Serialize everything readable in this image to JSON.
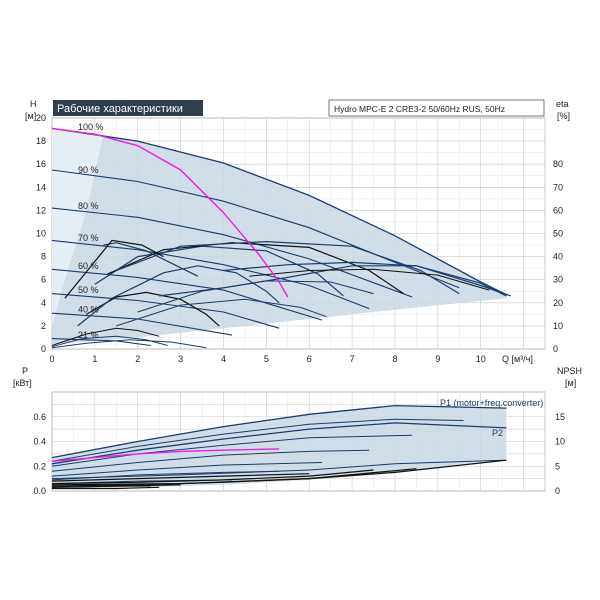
{
  "colors": {
    "band_fill": "#c9d7e3",
    "band_stroke": "#1f4e7a",
    "curve_navy": "#1a3d6b",
    "curve_black": "#111111",
    "highlight": "#e81fe8",
    "grid": "#c8c8c8",
    "title_bg": "#2f3e4d",
    "title_fg": "#ffffff"
  },
  "chart_data": [
    {
      "type": "line",
      "title": "Рабочие характеристики",
      "subtitle": "Hydro MPC-E 2 CRE3-2 50/60Hz RUS, 50Hz",
      "ylabel": "H",
      "yunit": "[м]",
      "ylabel_right": "eta",
      "yunit_right": "[%]",
      "xlabel": "Q [м³/ч]",
      "xlim": [
        0,
        11.5
      ],
      "ylim": [
        0,
        20
      ],
      "xticks": [
        "0",
        "1",
        "2",
        "3",
        "4",
        "5",
        "6",
        "7",
        "8",
        "9",
        "10"
      ],
      "yticks": [
        "0",
        "2",
        "4",
        "6",
        "8",
        "10",
        "12",
        "14",
        "16",
        "18",
        "20"
      ],
      "yticks_right": [
        "0",
        "10",
        "20",
        "30",
        "40",
        "50",
        "60",
        "70",
        "80"
      ],
      "y_right_lim": [
        0,
        100
      ],
      "grid": true,
      "speed_labels": [
        "100 %",
        "90 %",
        "80 %",
        "70 %",
        "60 %",
        "50 %",
        "40 %",
        "21 %"
      ],
      "series": [
        {
          "name": "100 %",
          "values": [
            [
              0,
              19.1
            ],
            [
              2,
              18.0
            ],
            [
              4,
              16.1
            ],
            [
              6,
              13.3
            ],
            [
              8,
              9.8
            ],
            [
              10,
              5.8
            ],
            [
              10.6,
              4.7
            ]
          ]
        },
        {
          "name": "90 %",
          "values": [
            [
              0,
              15.5
            ],
            [
              2,
              14.5
            ],
            [
              4,
              12.8
            ],
            [
              6,
              10.5
            ],
            [
              8,
              7.5
            ],
            [
              9.5,
              5.3
            ]
          ]
        },
        {
          "name": "80 %",
          "values": [
            [
              0,
              12.2
            ],
            [
              2,
              11.4
            ],
            [
              4,
              9.9
            ],
            [
              6,
              7.8
            ],
            [
              8.4,
              4.5
            ]
          ]
        },
        {
          "name": "70 %",
          "values": [
            [
              0,
              9.4
            ],
            [
              2,
              8.6
            ],
            [
              4,
              7.3
            ],
            [
              6,
              5.5
            ],
            [
              7.4,
              3.5
            ]
          ]
        },
        {
          "name": "60 %",
          "values": [
            [
              0,
              6.9
            ],
            [
              2,
              6.2
            ],
            [
              4,
              5.1
            ],
            [
              6.3,
              2.5
            ]
          ]
        },
        {
          "name": "50 %",
          "values": [
            [
              0,
              4.8
            ],
            [
              2,
              4.2
            ],
            [
              4,
              3.2
            ],
            [
              5.3,
              1.8
            ]
          ]
        },
        {
          "name": "40 %",
          "values": [
            [
              0,
              3.1
            ],
            [
              2,
              2.6
            ],
            [
              4.2,
              1.2
            ]
          ]
        },
        {
          "name": "21 %",
          "values": [
            [
              0,
              0.9
            ],
            [
              1.5,
              0.7
            ],
            [
              2.3,
              0.3
            ]
          ]
        }
      ],
      "envelope": [
        [
          0,
          19.1
        ],
        [
          2,
          18.0
        ],
        [
          4,
          16.1
        ],
        [
          6,
          13.3
        ],
        [
          8,
          9.8
        ],
        [
          10,
          5.8
        ],
        [
          10.6,
          4.7
        ],
        [
          10.6,
          4.4
        ],
        [
          8,
          3.4
        ],
        [
          6,
          2.6
        ],
        [
          4,
          1.8
        ],
        [
          2,
          1.0
        ],
        [
          0,
          0.4
        ]
      ],
      "eta_curves": [
        [
          [
            0.8,
            3.0
          ],
          [
            1.5,
            4.5
          ],
          [
            2.2,
            4.9
          ],
          [
            3.0,
            4.3
          ],
          [
            3.6,
            3.0
          ],
          [
            3.9,
            2.0
          ]
        ],
        [
          [
            0.6,
            2.0
          ],
          [
            1.4,
            4.4
          ],
          [
            2.6,
            6.6
          ],
          [
            3.4,
            7.2
          ],
          [
            4.3,
            6.6
          ],
          [
            5.0,
            5.0
          ],
          [
            5.3,
            4.0
          ]
        ],
        [
          [
            1.0,
            5.6
          ],
          [
            2.0,
            8.0
          ],
          [
            3.5,
            8.9
          ],
          [
            5.0,
            8.5
          ],
          [
            6.2,
            6.5
          ],
          [
            6.8,
            4.6
          ]
        ],
        [
          [
            1.3,
            6.5
          ],
          [
            2.6,
            8.6
          ],
          [
            4.2,
            9.2
          ],
          [
            6.0,
            8.8
          ],
          [
            7.4,
            6.8
          ],
          [
            8.2,
            4.8
          ]
        ],
        [
          [
            1.5,
            6.8
          ],
          [
            3.0,
            8.9
          ],
          [
            5.0,
            9.3
          ],
          [
            7.0,
            8.9
          ],
          [
            8.6,
            6.8
          ],
          [
            9.5,
            4.8
          ]
        ],
        [
          [
            1.2,
            9.0
          ],
          [
            1.5,
            9.2
          ],
          [
            2.2,
            8.5
          ],
          [
            3.4,
            6.3
          ]
        ],
        [
          [
            0.3,
            4.4
          ],
          [
            1.4,
            9.4
          ],
          [
            2.1,
            9.0
          ],
          [
            2.6,
            8.0
          ]
        ],
        [
          [
            2.5,
            4.6
          ],
          [
            4.0,
            5.3
          ],
          [
            5.5,
            6.2
          ],
          [
            7.0,
            7.2
          ],
          [
            8.5,
            7.2
          ],
          [
            10.0,
            5.5
          ],
          [
            10.7,
            4.6
          ]
        ],
        [
          [
            4.0,
            6.8
          ],
          [
            5.5,
            7.3
          ],
          [
            7.0,
            7.5
          ],
          [
            8.5,
            7.2
          ],
          [
            10.0,
            5.7
          ],
          [
            10.6,
            4.6
          ]
        ],
        [
          [
            0.0,
            0.3
          ],
          [
            0.8,
            1.3
          ],
          [
            1.5,
            1.8
          ],
          [
            2.0,
            1.6
          ],
          [
            2.5,
            1.1
          ]
        ],
        [
          [
            0.0,
            0.2
          ],
          [
            0.7,
            0.9
          ],
          [
            1.5,
            1.1
          ],
          [
            2.2,
            0.8
          ],
          [
            2.7,
            0.3
          ]
        ],
        [
          [
            0.0,
            0.1
          ],
          [
            0.8,
            0.5
          ],
          [
            1.8,
            0.8
          ],
          [
            2.8,
            0.6
          ],
          [
            3.6,
            0.1
          ]
        ],
        [
          [
            4.6,
            6.3
          ],
          [
            6.0,
            6.8
          ],
          [
            7.5,
            6.9
          ],
          [
            9.0,
            6.4
          ],
          [
            10.2,
            5.1
          ]
        ],
        [
          [
            2.0,
            3.2
          ],
          [
            3.5,
            5.0
          ],
          [
            5.0,
            5.9
          ],
          [
            6.5,
            5.8
          ],
          [
            7.5,
            4.8
          ]
        ],
        [
          [
            1.5,
            2.0
          ],
          [
            3.0,
            3.8
          ],
          [
            4.5,
            4.3
          ],
          [
            5.8,
            3.6
          ],
          [
            6.4,
            2.8
          ]
        ]
      ],
      "highlight_curve": [
        [
          0,
          19.1
        ],
        [
          1.0,
          18.6
        ],
        [
          2.0,
          17.6
        ],
        [
          3.0,
          15.5
        ],
        [
          4.0,
          11.8
        ],
        [
          4.8,
          8.3
        ],
        [
          5.3,
          5.8
        ],
        [
          5.5,
          4.5
        ]
      ]
    },
    {
      "type": "line",
      "ylabel": "P",
      "yunit": "[кВт]",
      "ylabel_right": "NPSH",
      "yunit_right": "[м]",
      "xlim": [
        0,
        11.5
      ],
      "ylim": [
        0,
        0.8
      ],
      "yticks": [
        "0.0",
        "0.2",
        "0.4",
        "0.6"
      ],
      "yticks_right": [
        "0",
        "5",
        "10",
        "15"
      ],
      "y_right_lim": [
        0,
        20
      ],
      "grid": true,
      "series_labels": [
        "P1 (motor+freq.converter)",
        "P2"
      ],
      "series": [
        {
          "name": "P1 (motor+freq.converter)",
          "values": [
            [
              0,
              0.27
            ],
            [
              2,
              0.4
            ],
            [
              4,
              0.52
            ],
            [
              6,
              0.62
            ],
            [
              8,
              0.69
            ],
            [
              10.6,
              0.67
            ]
          ]
        },
        {
          "name": "P2",
          "values": [
            [
              0,
              0.22
            ],
            [
              2,
              0.33
            ],
            [
              4,
              0.42
            ],
            [
              6,
              0.5
            ],
            [
              8,
              0.55
            ],
            [
              10.6,
              0.51
            ]
          ]
        }
      ],
      "envelope": [
        [
          0,
          0.27
        ],
        [
          2,
          0.4
        ],
        [
          4,
          0.52
        ],
        [
          6,
          0.62
        ],
        [
          8,
          0.69
        ],
        [
          10.6,
          0.67
        ],
        [
          10.6,
          0.26
        ],
        [
          8,
          0.15
        ],
        [
          6,
          0.09
        ],
        [
          4,
          0.05
        ],
        [
          2,
          0.03
        ],
        [
          0,
          0.02
        ]
      ],
      "power_curves": [
        [
          [
            0,
            0.24
          ],
          [
            2,
            0.36
          ],
          [
            4,
            0.46
          ],
          [
            6,
            0.54
          ],
          [
            8,
            0.58
          ],
          [
            9.6,
            0.57
          ]
        ],
        [
          [
            0,
            0.2
          ],
          [
            2,
            0.3
          ],
          [
            4,
            0.37
          ],
          [
            6,
            0.43
          ],
          [
            8.4,
            0.45
          ]
        ],
        [
          [
            0,
            0.16
          ],
          [
            2,
            0.23
          ],
          [
            4,
            0.29
          ],
          [
            6,
            0.32
          ],
          [
            7.4,
            0.33
          ]
        ],
        [
          [
            0,
            0.12
          ],
          [
            2,
            0.17
          ],
          [
            4,
            0.21
          ],
          [
            6.3,
            0.23
          ]
        ],
        [
          [
            0,
            0.09
          ],
          [
            2,
            0.13
          ],
          [
            4,
            0.15
          ],
          [
            5.3,
            0.16
          ]
        ],
        [
          [
            0,
            0.06
          ],
          [
            2,
            0.08
          ],
          [
            4.2,
            0.09
          ]
        ],
        [
          [
            0,
            0.03
          ],
          [
            1.5,
            0.04
          ],
          [
            2.3,
            0.04
          ]
        ],
        [
          [
            0,
            0.1
          ],
          [
            3,
            0.13
          ],
          [
            6,
            0.17
          ],
          [
            8,
            0.22
          ],
          [
            10.6,
            0.25
          ]
        ]
      ],
      "black_curves": [
        [
          [
            0,
            0.05
          ],
          [
            3,
            0.06
          ],
          [
            6,
            0.1
          ],
          [
            8,
            0.15
          ],
          [
            10.6,
            0.25
          ]
        ],
        [
          [
            0,
            0.04
          ],
          [
            2,
            0.05
          ],
          [
            4,
            0.07
          ],
          [
            6,
            0.1
          ],
          [
            8.5,
            0.18
          ]
        ],
        [
          [
            0,
            0.06
          ],
          [
            2,
            0.07
          ],
          [
            4,
            0.09
          ],
          [
            6,
            0.12
          ],
          [
            7.5,
            0.17
          ]
        ],
        [
          [
            0,
            0.08
          ],
          [
            2,
            0.1
          ],
          [
            4,
            0.12
          ],
          [
            6,
            0.14
          ]
        ],
        [
          [
            0,
            0.03
          ],
          [
            1.5,
            0.04
          ],
          [
            3,
            0.05
          ]
        ],
        [
          [
            0,
            0.02
          ],
          [
            1.5,
            0.02
          ],
          [
            2.5,
            0.03
          ]
        ]
      ],
      "highlight_curve": [
        [
          0,
          0.24
        ],
        [
          1.0,
          0.27
        ],
        [
          2.0,
          0.3
        ],
        [
          3.0,
          0.32
        ],
        [
          4.0,
          0.33
        ],
        [
          5.3,
          0.34
        ]
      ]
    }
  ]
}
